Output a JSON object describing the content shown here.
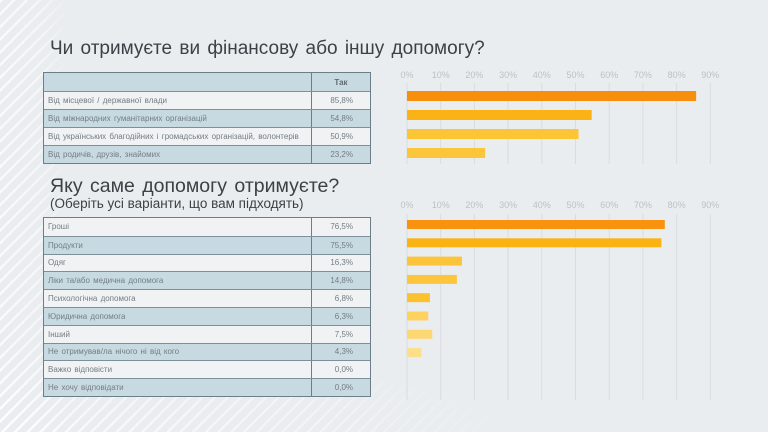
{
  "colors": {
    "background": "#EAEDF0",
    "title": "#3B4146",
    "table_row_light": "#F0F2F4",
    "table_row_blue": "#C7DAE2",
    "table_border": "#6C7E87",
    "gridline": "#D8DDE1",
    "tick_label": "#BAC1C6"
  },
  "chart_data": [
    {
      "type": "bar",
      "orientation": "horizontal",
      "title": "Чи отримуєте ви фінансову або іншу допомогу?",
      "table_header": "Так",
      "categories": [
        "Від місцевої / державної влади",
        "Від міжнародних гуманітарних організацій",
        "Від українських благодійних і громадських організацій, волонтерів",
        "Від родичів, друзів, знайомих"
      ],
      "values": [
        85.8,
        54.8,
        50.9,
        23.2
      ],
      "value_labels": [
        "85,8%",
        "54,8%",
        "50,9%",
        "23,2%"
      ],
      "xlim": [
        0,
        90
      ],
      "x_ticks": [
        0,
        10,
        20,
        30,
        40,
        50,
        60,
        70,
        80,
        90
      ],
      "tick_labels": [
        "0%",
        "10%",
        "20%",
        "30%",
        "40%",
        "50%",
        "60%",
        "70%",
        "80%",
        "90%"
      ],
      "xlabel": "",
      "ylabel": "",
      "grid": true,
      "legend": "none",
      "bar_colors": [
        "#F88F0C",
        "#FAB214",
        "#FCC533",
        "#FCC63A"
      ]
    },
    {
      "type": "bar",
      "orientation": "horizontal",
      "title": "Яку саме допомогу отримуєте?",
      "subtitle": "(Оберіть усі варіанти, що вам підходять)",
      "categories": [
        "Гроші",
        "Продукти",
        "Одяг",
        "Ліки та/або медична допомога",
        "Психологічна допомога",
        "Юридична допомога",
        "Інший",
        "Не отримував/ла нічого ні від кого",
        "Важко відповісти",
        "Не хочу відповідати"
      ],
      "values": [
        76.5,
        75.5,
        16.3,
        14.8,
        6.8,
        6.3,
        7.5,
        4.3,
        0.0,
        0.0
      ],
      "value_labels": [
        "76,5%",
        "75,5%",
        "16,3%",
        "14,8%",
        "6,8%",
        "6,3%",
        "7,5%",
        "4,3%",
        "0,0%",
        "0,0%"
      ],
      "xlim": [
        0,
        90
      ],
      "x_ticks": [
        0,
        10,
        20,
        30,
        40,
        50,
        60,
        70,
        80,
        90
      ],
      "tick_labels": [
        "0%",
        "10%",
        "20%",
        "30%",
        "40%",
        "50%",
        "60%",
        "70%",
        "80%",
        "90%"
      ],
      "xlabel": "",
      "ylabel": "",
      "grid": true,
      "legend": "none",
      "bar_colors": [
        "#F8920F",
        "#FAB313",
        "#FCC43A",
        "#FCC53B",
        "#FCC22E",
        "#FDD25E",
        "#FDD772",
        "#FDDF8A",
        "#FEE7A8",
        "#FEEBB8"
      ]
    }
  ]
}
